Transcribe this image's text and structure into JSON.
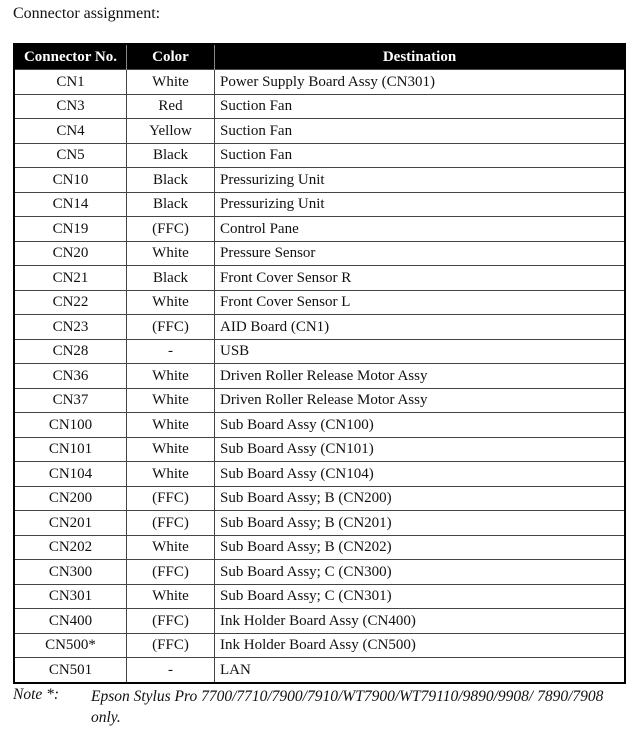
{
  "title": "Connector assignment:",
  "table": {
    "headers": [
      "Connector No.",
      "Color",
      "Destination"
    ],
    "rows": [
      [
        "CN1",
        "White",
        "Power Supply Board Assy (CN301)"
      ],
      [
        "CN3",
        "Red",
        "Suction Fan"
      ],
      [
        "CN4",
        "Yellow",
        "Suction Fan"
      ],
      [
        "CN5",
        "Black",
        "Suction Fan"
      ],
      [
        "CN10",
        "Black",
        "Pressurizing Unit"
      ],
      [
        "CN14",
        "Black",
        "Pressurizing Unit"
      ],
      [
        "CN19",
        "(FFC)",
        "Control Pane"
      ],
      [
        "CN20",
        "White",
        "Pressure Sensor"
      ],
      [
        "CN21",
        "Black",
        "Front Cover Sensor R"
      ],
      [
        "CN22",
        "White",
        "Front Cover Sensor L"
      ],
      [
        "CN23",
        "(FFC)",
        "AID Board (CN1)"
      ],
      [
        "CN28",
        "-",
        "USB"
      ],
      [
        "CN36",
        "White",
        "Driven Roller Release Motor Assy"
      ],
      [
        "CN37",
        "White",
        "Driven Roller Release Motor Assy"
      ],
      [
        "CN100",
        "White",
        "Sub Board Assy (CN100)"
      ],
      [
        "CN101",
        "White",
        "Sub Board Assy (CN101)"
      ],
      [
        "CN104",
        "White",
        "Sub Board Assy (CN104)"
      ],
      [
        "CN200",
        "(FFC)",
        "Sub Board Assy; B (CN200)"
      ],
      [
        "CN201",
        "(FFC)",
        "Sub Board Assy; B (CN201)"
      ],
      [
        "CN202",
        "White",
        "Sub Board Assy; B (CN202)"
      ],
      [
        "CN300",
        "(FFC)",
        "Sub Board Assy; C (CN300)"
      ],
      [
        "CN301",
        "White",
        "Sub Board Assy; C (CN301)"
      ],
      [
        "CN400",
        "(FFC)",
        "Ink Holder Board Assy (CN400)"
      ],
      [
        "CN500*",
        "(FFC)",
        "Ink Holder Board Assy (CN500)"
      ],
      [
        "CN501",
        "-",
        "LAN"
      ]
    ]
  },
  "note": {
    "label": "Note *:",
    "text": "Epson Stylus Pro 7700/7710/7900/7910/WT7900/WT79110/9890/9908/ 7890/7908 only."
  }
}
